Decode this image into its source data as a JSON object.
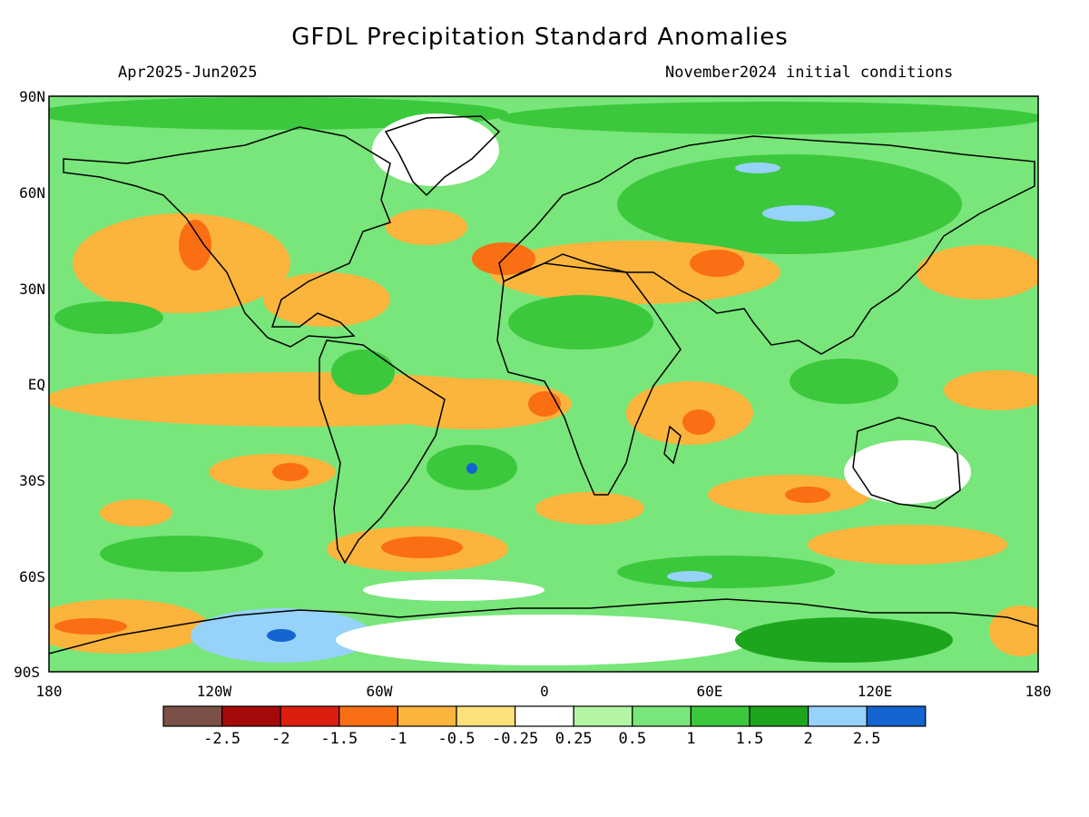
{
  "header": {
    "title": "GFDL Precipitation Standard Anomalies",
    "period": "Apr2025-Jun2025",
    "init": "November2024 initial conditions"
  },
  "axes": {
    "lat_labels": [
      "90N",
      "60N",
      "30N",
      "EQ",
      "30S",
      "60S",
      "90S"
    ],
    "lon_labels": [
      "180",
      "120W",
      "60W",
      "0",
      "60E",
      "120E",
      "180"
    ]
  },
  "colorbar": {
    "colors": [
      "#7a5048",
      "#a50a0a",
      "#dc1e0f",
      "#fa6e14",
      "#fbb43c",
      "#fde17a",
      "#ffffff",
      "#b4f5a5",
      "#78e67a",
      "#3cc83c",
      "#1ea51e",
      "#96d2fa",
      "#1464d2"
    ],
    "labels": [
      "-2.5",
      "-2",
      "-1.5",
      "-1",
      "-0.5",
      "-0.25",
      "0.25",
      "0.5",
      "1",
      "1.5",
      "2",
      "2.5"
    ]
  },
  "map_colors": {
    "ocean_base": "#78e67a",
    "dry": "#fbb43c",
    "very_dry": "#fa6e14",
    "neutral": "#ffffff",
    "wet": "#3cc83c",
    "very_wet": "#1ea51e",
    "extreme_wet": "#96d2fa"
  }
}
